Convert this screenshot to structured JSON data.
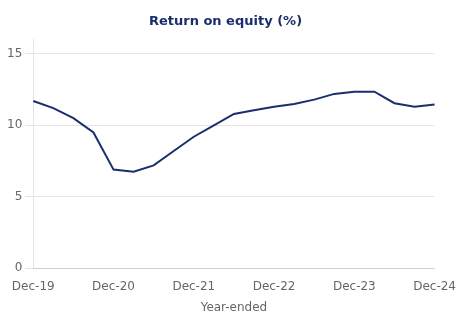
{
  "chart_data": {
    "type": "line",
    "title": "Return on equity (%)",
    "xlabel": "Year-ended",
    "categories": [
      "Dec-19",
      null,
      null,
      null,
      "Dec-20",
      null,
      null,
      null,
      "Dec-21",
      null,
      null,
      null,
      "Dec-22",
      null,
      null,
      null,
      "Dec-23",
      null,
      null,
      null,
      "Dec-24"
    ],
    "values": [
      11.7,
      11.2,
      10.5,
      9.5,
      6.9,
      6.75,
      7.2,
      8.2,
      9.2,
      10.0,
      10.8,
      11.05,
      11.3,
      11.5,
      11.8,
      12.2,
      12.35,
      12.35,
      11.55,
      11.3,
      11.45
    ],
    "color": "#1a2e6e",
    "ylim": [
      0,
      16
    ],
    "yticks": [
      0,
      5,
      10,
      15
    ],
    "grid": true
  }
}
